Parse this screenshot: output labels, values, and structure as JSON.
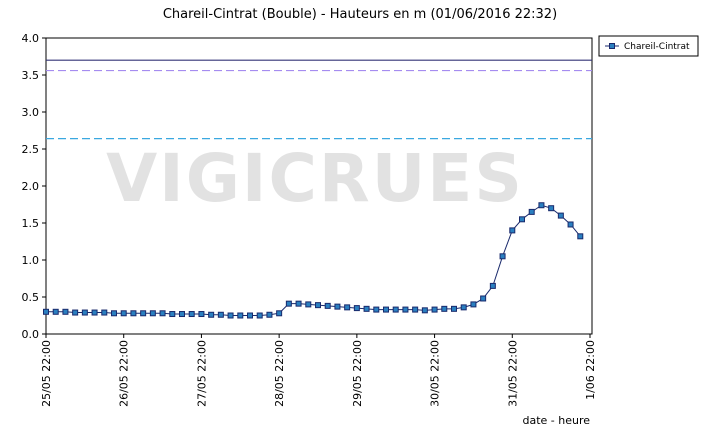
{
  "chart_data": {
    "type": "line",
    "title": "Chareil-Cintrat (Bouble) - Hauteurs en m (01/06/2016 22:32)",
    "watermark": "VIGICRUES",
    "xlabel": "date - heure",
    "legend": "top-right",
    "series": [
      {
        "name": "Chareil-Cintrat",
        "color": "#1a2a6c",
        "marker_color": "#2a7fc0",
        "values": [
          0.3,
          0.3,
          0.3,
          0.29,
          0.29,
          0.29,
          0.29,
          0.28,
          0.28,
          0.28,
          0.28,
          0.28,
          0.28,
          0.27,
          0.27,
          0.27,
          0.27,
          0.26,
          0.26,
          0.25,
          0.25,
          0.25,
          0.25,
          0.26,
          0.28,
          0.41,
          0.41,
          0.4,
          0.39,
          0.38,
          0.37,
          0.36,
          0.35,
          0.34,
          0.33,
          0.33,
          0.33,
          0.33,
          0.33,
          0.32,
          0.33,
          0.34,
          0.34,
          0.36,
          0.4,
          0.48,
          0.65,
          1.05,
          1.4,
          1.55,
          1.65,
          1.74,
          1.7,
          1.6,
          1.48,
          1.32
        ]
      }
    ],
    "x": [
      "25/05 22:00",
      "26/05 01:00",
      "26/05 04:00",
      "26/05 07:00",
      "26/05 10:00",
      "26/05 13:00",
      "26/05 16:00",
      "26/05 19:00",
      "26/05 22:00",
      "27/05 01:00",
      "27/05 04:00",
      "27/05 07:00",
      "27/05 10:00",
      "27/05 13:00",
      "27/05 16:00",
      "27/05 19:00",
      "27/05 22:00",
      "28/05 01:00",
      "28/05 04:00",
      "28/05 07:00",
      "28/05 10:00",
      "28/05 13:00",
      "28/05 16:00",
      "28/05 19:00",
      "28/05 22:00",
      "29/05 01:00",
      "29/05 04:00",
      "29/05 07:00",
      "29/05 10:00",
      "29/05 13:00",
      "29/05 16:00",
      "29/05 19:00",
      "29/05 22:00",
      "30/05 01:00",
      "30/05 04:00",
      "30/05 07:00",
      "30/05 10:00",
      "30/05 13:00",
      "30/05 16:00",
      "30/05 19:00",
      "30/05 22:00",
      "31/05 01:00",
      "31/05 04:00",
      "31/05 07:00",
      "31/05 10:00",
      "31/05 13:00",
      "31/05 16:00",
      "31/05 19:00",
      "31/05 22:00",
      "01/06 01:00",
      "01/06 04:00",
      "01/06 07:00",
      "01/06 10:00",
      "01/06 13:00",
      "01/06 16:00",
      "01/06 19:00"
    ],
    "xlim": [
      "25/05 22:00",
      "1/06 22:00"
    ],
    "xticks": [
      "25/05 22:00",
      "26/05 22:00",
      "27/05 22:00",
      "28/05 22:00",
      "29/05 22:00",
      "30/05 22:00",
      "31/05 22:00",
      "1/06 22:00"
    ],
    "ylim": [
      0,
      4
    ],
    "yticks": [
      {
        "value": 0,
        "label": "0.0"
      },
      {
        "value": 0.5,
        "label": "0.5"
      },
      {
        "value": 1,
        "label": "1.0"
      },
      {
        "value": 1.5,
        "label": "1.5"
      },
      {
        "value": 2,
        "label": "2.0"
      },
      {
        "value": 2.5,
        "label": "2.5"
      },
      {
        "value": 3,
        "label": "3.0"
      },
      {
        "value": 3.5,
        "label": "3.5"
      },
      {
        "value": 4,
        "label": "4.0"
      }
    ],
    "reference_lines": [
      {
        "value": 3.7,
        "color": "#333377",
        "style": "solid"
      },
      {
        "value": 3.56,
        "color": "#a58cf0",
        "style": "dashed"
      },
      {
        "value": 2.64,
        "color": "#3aa8e0",
        "style": "dashed"
      }
    ]
  }
}
